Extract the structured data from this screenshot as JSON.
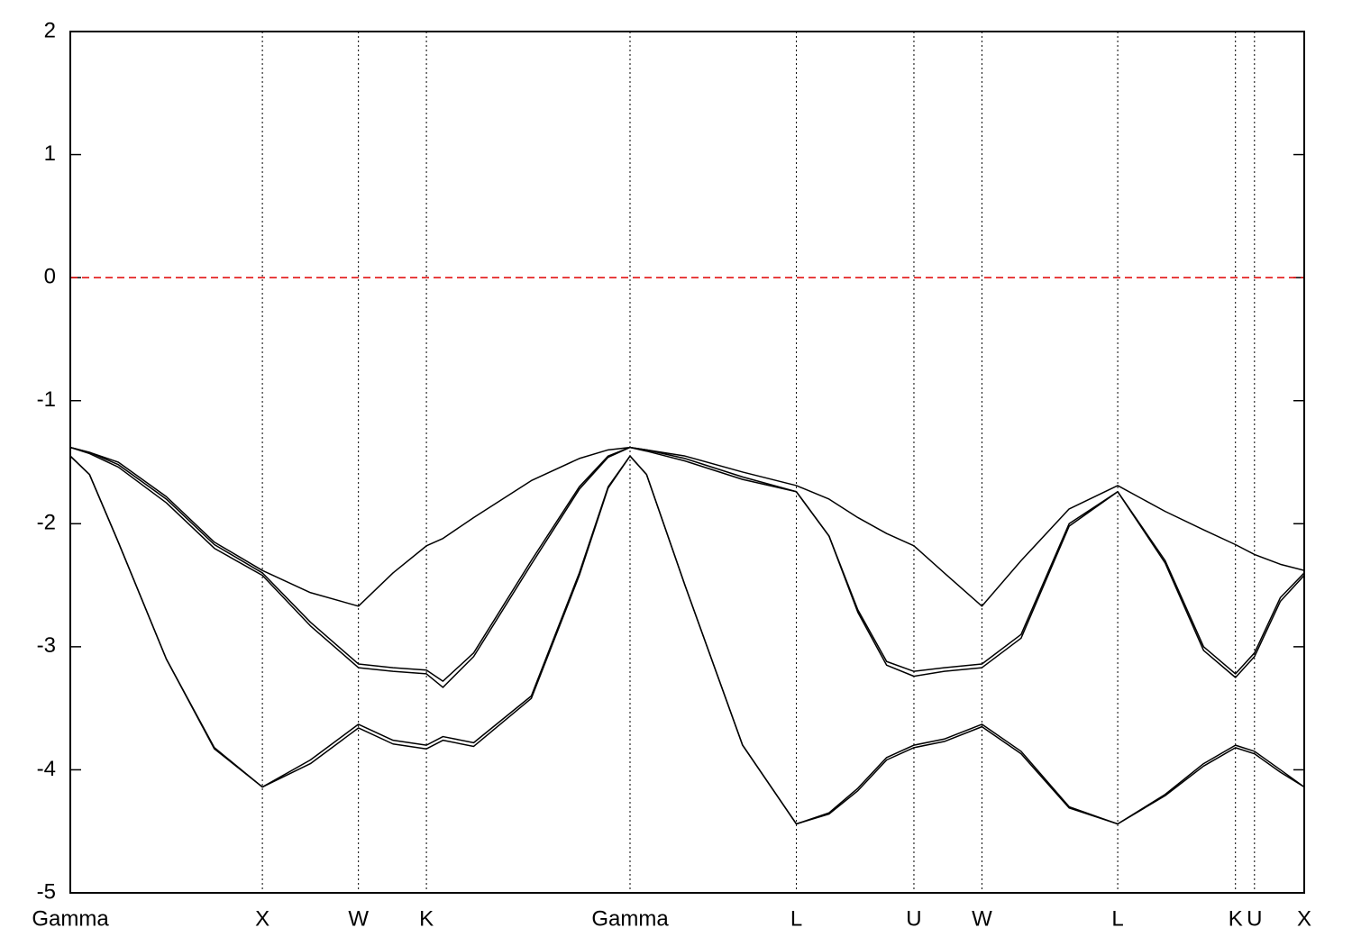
{
  "chart_data": {
    "type": "line",
    "x": [
      0,
      0.1,
      0.25,
      0.5,
      0.75,
      1.0,
      1.25,
      1.5,
      1.68,
      1.854,
      1.94,
      2.1,
      2.4,
      2.65,
      2.8,
      2.914,
      3.0,
      3.2,
      3.5,
      3.78,
      3.95,
      4.1,
      4.25,
      4.392,
      4.55,
      4.746,
      4.95,
      5.2,
      5.453,
      5.7,
      5.9,
      6.066,
      6.165,
      6.3,
      6.424
    ],
    "series": [
      {
        "color": "#000000",
        "values": [
          -1.38,
          -1.42,
          -1.5,
          -1.78,
          -2.15,
          -2.38,
          -2.56,
          -2.67,
          -2.4,
          -2.18,
          -2.12,
          -1.95,
          -1.65,
          -1.47,
          -1.4,
          -1.38,
          -1.4,
          -1.45,
          -1.58,
          -1.69,
          -1.8,
          -1.95,
          -2.08,
          -2.18,
          -2.4,
          -2.67,
          -2.3,
          -1.88,
          -1.69,
          -1.9,
          -2.05,
          -2.17,
          -2.25,
          -2.33,
          -2.38
        ]
      },
      {
        "color": "#000000",
        "values": [
          -1.38,
          -1.42,
          -1.52,
          -1.8,
          -2.17,
          -2.4,
          -2.8,
          -3.14,
          -3.17,
          -3.19,
          -3.28,
          -3.05,
          -2.3,
          -1.7,
          -1.45,
          -1.38,
          -1.4,
          -1.47,
          -1.62,
          -1.74,
          -2.1,
          -2.7,
          -3.12,
          -3.2,
          -3.17,
          -3.14,
          -2.9,
          -2.0,
          -1.74,
          -2.3,
          -3.0,
          -3.22,
          -3.05,
          -2.6,
          -2.4
        ]
      },
      {
        "color": "#000000",
        "values": [
          -1.38,
          -1.43,
          -1.54,
          -1.83,
          -2.2,
          -2.42,
          -2.83,
          -3.17,
          -3.2,
          -3.22,
          -3.33,
          -3.08,
          -2.33,
          -1.72,
          -1.46,
          -1.38,
          -1.41,
          -1.49,
          -1.64,
          -1.74,
          -2.1,
          -2.72,
          -3.15,
          -3.24,
          -3.2,
          -3.17,
          -2.93,
          -2.02,
          -1.74,
          -2.32,
          -3.03,
          -3.25,
          -3.08,
          -2.63,
          -2.42
        ]
      },
      {
        "color": "#000000",
        "values": [
          -1.45,
          -1.6,
          -2.15,
          -3.1,
          -3.82,
          -4.14,
          -3.92,
          -3.63,
          -3.76,
          -3.8,
          -3.73,
          -3.78,
          -3.4,
          -2.4,
          -1.7,
          -1.45,
          -1.6,
          -2.5,
          -3.8,
          -4.44,
          -4.35,
          -4.15,
          -3.9,
          -3.8,
          -3.75,
          -3.63,
          -3.85,
          -4.3,
          -4.44,
          -4.2,
          -3.95,
          -3.8,
          -3.85,
          -4.0,
          -4.14
        ]
      },
      {
        "color": "#000000",
        "values": [
          -1.45,
          -1.6,
          -2.15,
          -3.1,
          -3.83,
          -4.14,
          -3.95,
          -3.66,
          -3.79,
          -3.83,
          -3.76,
          -3.81,
          -3.42,
          -2.42,
          -1.71,
          -1.45,
          -1.6,
          -2.5,
          -3.8,
          -4.44,
          -4.36,
          -4.17,
          -3.92,
          -3.82,
          -3.77,
          -3.65,
          -3.87,
          -4.31,
          -4.44,
          -4.21,
          -3.97,
          -3.82,
          -3.87,
          -4.02,
          -4.14
        ]
      }
    ],
    "xlim": [
      0,
      6.424
    ],
    "xticks": [
      {
        "value": 0,
        "label": "Gamma"
      },
      {
        "value": 1.0,
        "label": "X"
      },
      {
        "value": 1.5,
        "label": "W"
      },
      {
        "value": 1.854,
        "label": "K"
      },
      {
        "value": 2.914,
        "label": "Gamma"
      },
      {
        "value": 3.78,
        "label": "L"
      },
      {
        "value": 4.392,
        "label": "U"
      },
      {
        "value": 4.746,
        "label": "W"
      },
      {
        "value": 5.453,
        "label": "L"
      },
      {
        "value": 6.066,
        "label": "K"
      },
      {
        "value": 6.165,
        "label": "U"
      },
      {
        "value": 6.424,
        "label": "X"
      }
    ],
    "xgrid": true,
    "ylim": [
      -5,
      2
    ],
    "yticks": [
      -5,
      -4,
      -3,
      -2,
      -1,
      0,
      1,
      2
    ],
    "fermi_level": 0,
    "fermi_color": "#e00000"
  }
}
